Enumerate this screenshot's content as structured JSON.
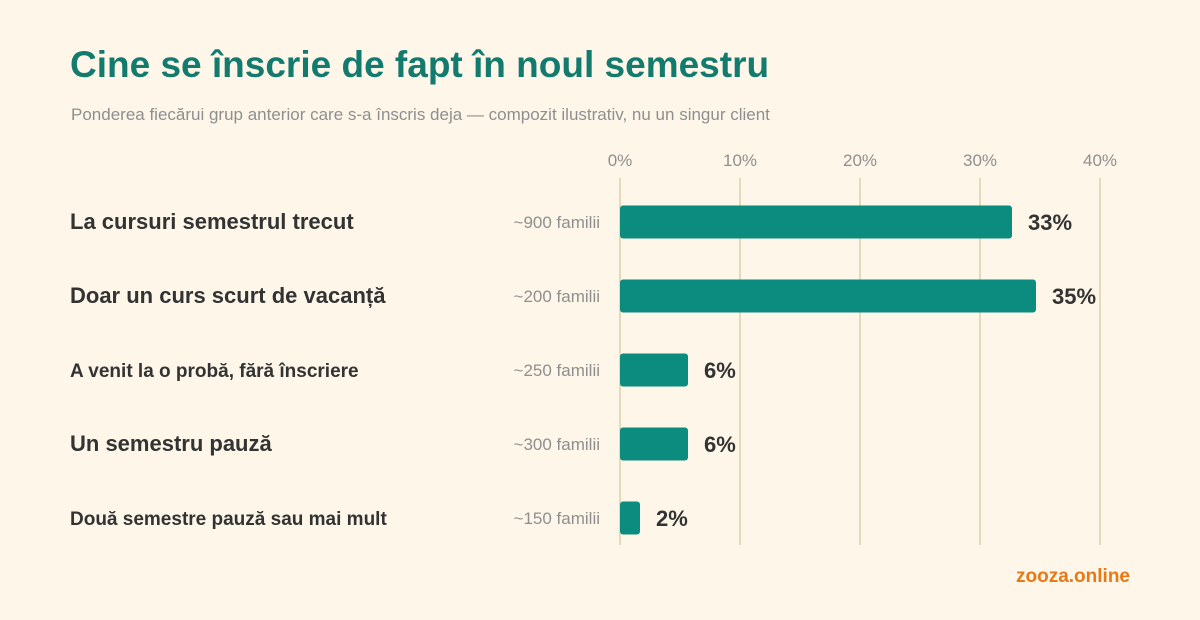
{
  "title": "Cine se înscrie de fapt în noul semestru",
  "subtitle": "Ponderea fiecărui grup anterior care s-a înscris deja — compozit ilustrativ, nu un singur client",
  "brand": "zooza.online",
  "colors": {
    "title": "#137a6e",
    "bar": "#0c8b7f",
    "grid": "#e6d9bb",
    "background": "#fdf6e9",
    "brand": "#e97915"
  },
  "chart_data": {
    "type": "bar",
    "orientation": "horizontal",
    "categories": [
      "La cursuri semestrul trecut",
      "Doar un curs scurt de vacanță",
      "A venit la o probă, fără înscriere",
      "Un semestru pauză",
      "Două semestre pauză sau mai mult"
    ],
    "category_notes": [
      "~900 familii",
      "~200 familii",
      "~250 familii",
      "~300 familii",
      "~150 familii"
    ],
    "values": [
      33,
      35,
      6,
      6,
      2
    ],
    "value_labels": [
      "33%",
      "35%",
      "6%",
      "6%",
      "2%"
    ],
    "xlim": [
      0,
      40
    ],
    "xticks": [
      "0%",
      "10%",
      "20%",
      "30%",
      "40%"
    ],
    "tick_values": [
      0,
      10,
      20,
      30,
      40
    ],
    "grid": true,
    "xlabel": "",
    "ylabel": ""
  }
}
